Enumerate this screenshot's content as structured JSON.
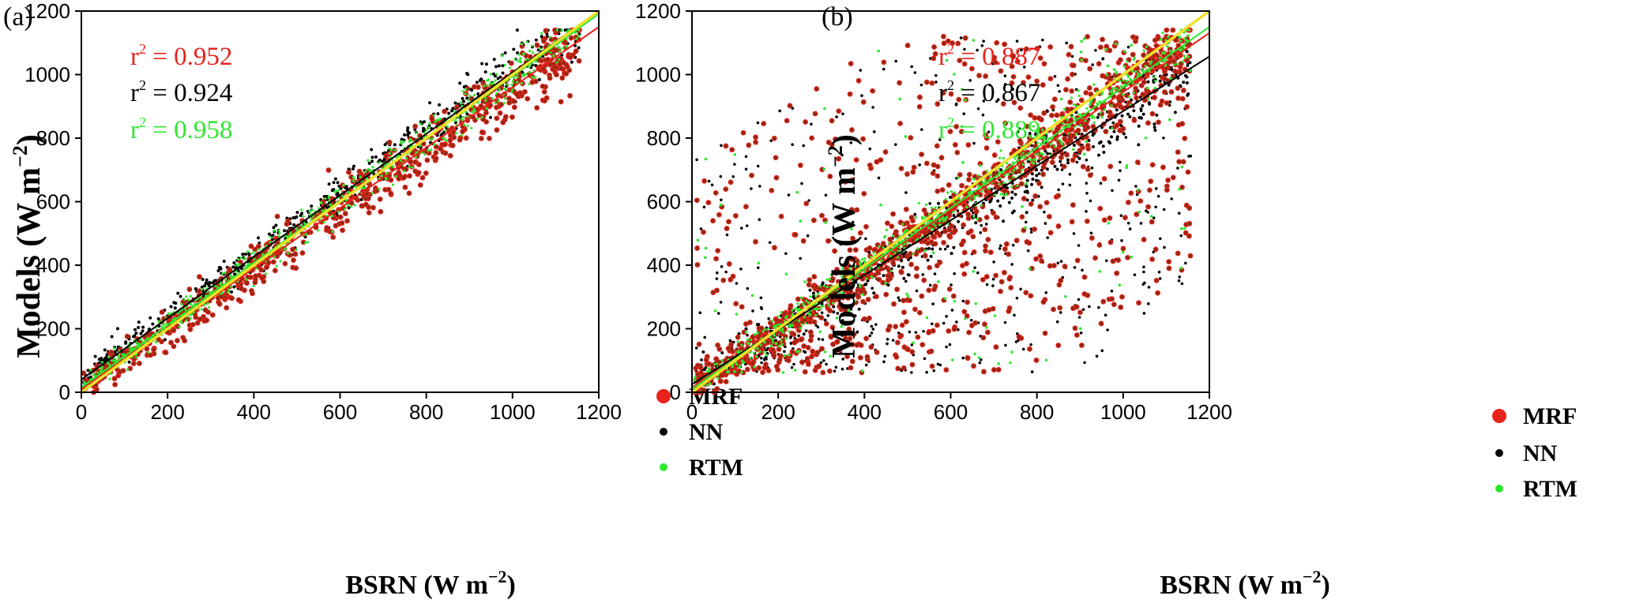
{
  "chart_data": [
    {
      "panel_label": "(a)",
      "type": "scatter",
      "xlabel": "BSRN",
      "xlabel_units": "(W m",
      "ylabel": "Models",
      "ylabel_units": "(W m",
      "units_exponent": "−2",
      "units_close": ")",
      "xlim": [
        0,
        1200
      ],
      "ylim": [
        0,
        1200
      ],
      "xticks": [
        0,
        200,
        400,
        600,
        800,
        1000,
        1200
      ],
      "yticks": [
        0,
        200,
        400,
        600,
        800,
        1000,
        1200
      ],
      "legend_position": "bottom-right",
      "annotations": [
        {
          "prefix": "r",
          "sup": "2",
          "text": " = 0.952",
          "color": "#e8231c"
        },
        {
          "prefix": "r",
          "sup": "2",
          "text": " = 0.924",
          "color": "#000000"
        },
        {
          "prefix": "r",
          "sup": "2",
          "text": " = 0.958",
          "color": "#2ee82e"
        }
      ],
      "series": [
        {
          "name": "MRF",
          "color": "#e8231c",
          "fit": {
            "slope": 0.95,
            "intercept": 10
          },
          "spread": 45,
          "scatter_extra": 0
        },
        {
          "name": "NN",
          "color": "#000000",
          "fit": {
            "slope": 0.97,
            "intercept": 40
          },
          "spread": 40,
          "scatter_extra": 0
        },
        {
          "name": "RTM",
          "color": "#2ee82e",
          "fit": {
            "slope": 0.98,
            "intercept": 15
          },
          "spread": 30,
          "scatter_extra": 0
        }
      ],
      "one_to_one_line": {
        "color": "#f0e02a"
      }
    },
    {
      "panel_label": "(b)",
      "type": "scatter",
      "xlabel": "BSRN",
      "xlabel_units": "(W m",
      "ylabel": "Models",
      "ylabel_units": "(W m",
      "units_exponent": "−2",
      "units_close": ")",
      "xlim": [
        0,
        1200
      ],
      "ylim": [
        0,
        1200
      ],
      "xticks": [
        0,
        200,
        400,
        600,
        800,
        1000,
        1200
      ],
      "yticks": [
        0,
        200,
        400,
        600,
        800,
        1000,
        1200
      ],
      "legend_position": "bottom-right",
      "annotations": [
        {
          "prefix": "r",
          "sup": "2",
          "text": " = 0.887",
          "color": "#e8231c"
        },
        {
          "prefix": "r",
          "sup": "2",
          "text": " = 0.867",
          "color": "#000000"
        },
        {
          "prefix": "r",
          "sup": "2",
          "text": " = 0.889",
          "color": "#2ee82e"
        }
      ],
      "series": [
        {
          "name": "MRF",
          "color": "#e8231c",
          "fit": {
            "slope": 0.93,
            "intercept": 15
          },
          "spread": 50,
          "scatter_extra": 700
        },
        {
          "name": "NN",
          "color": "#000000",
          "fit": {
            "slope": 0.86,
            "intercept": 25
          },
          "spread": 50,
          "scatter_extra": 500
        },
        {
          "name": "RTM",
          "color": "#2ee82e",
          "fit": {
            "slope": 0.95,
            "intercept": 10
          },
          "spread": 35,
          "scatter_extra": 150
        }
      ],
      "one_to_one_line": {
        "color": "#f0e02a"
      }
    }
  ]
}
